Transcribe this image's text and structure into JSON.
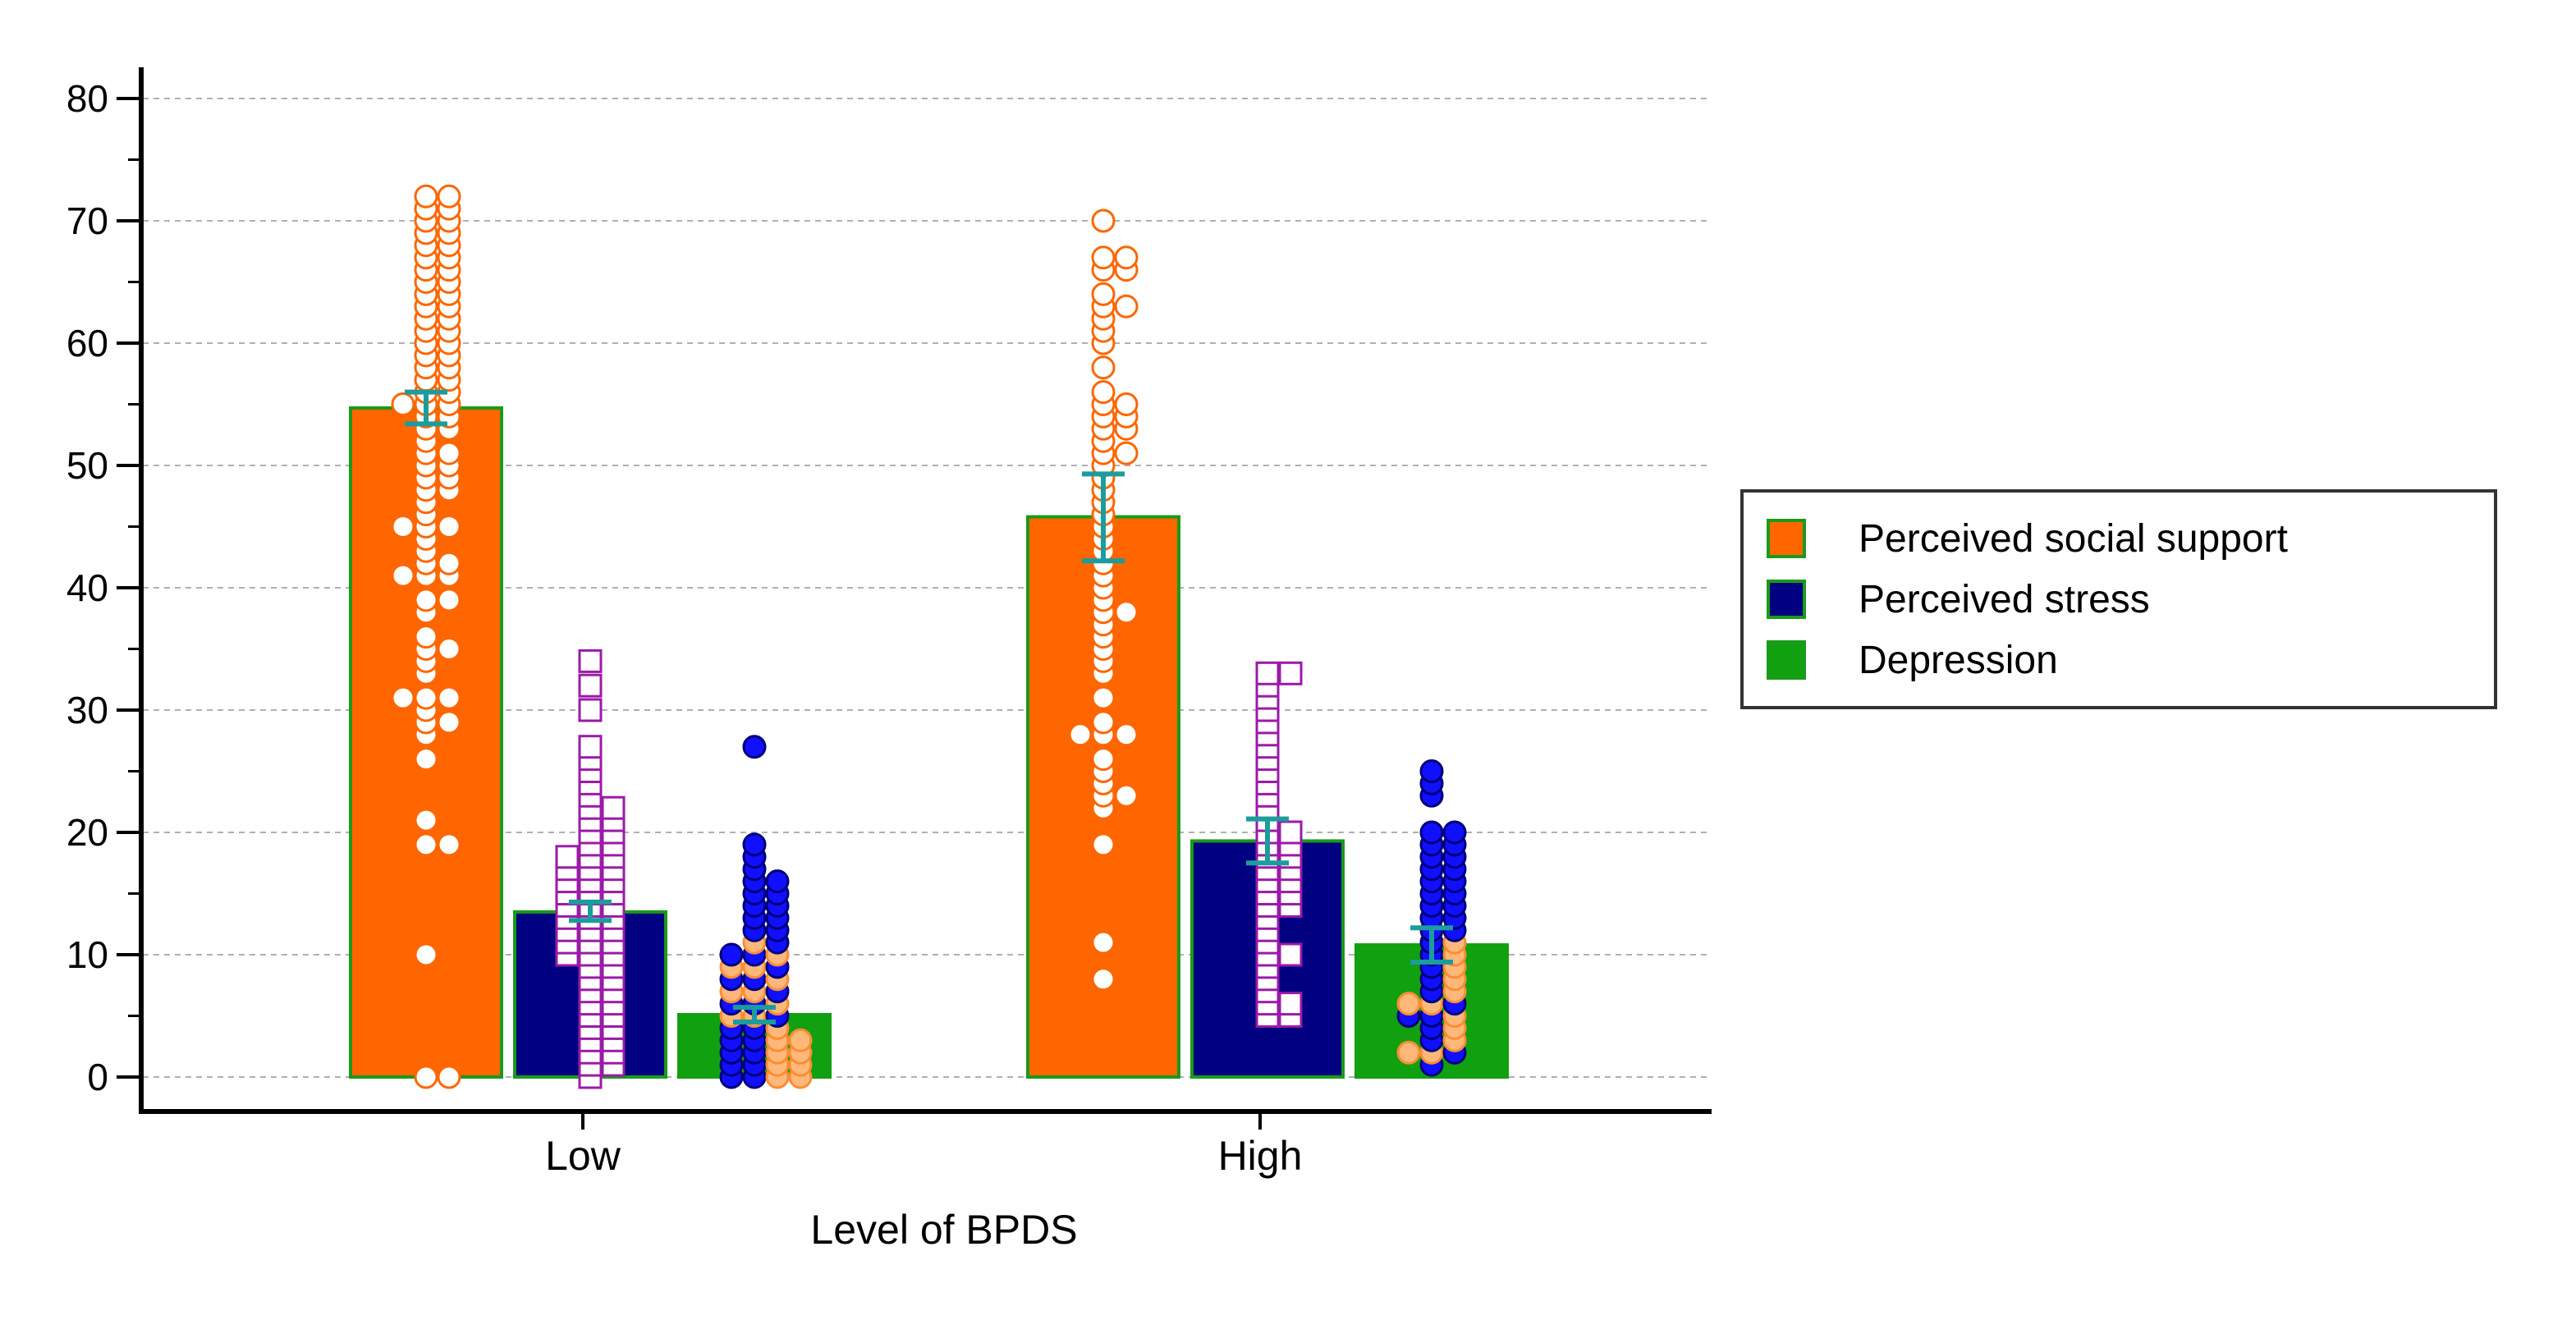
{
  "chart_data": {
    "type": "bar",
    "title": "",
    "xlabel": "Level of BPDS",
    "ylabel": "",
    "ylim": [
      -2,
      83
    ],
    "yticks": [
      0,
      10,
      20,
      30,
      40,
      50,
      60,
      70,
      80
    ],
    "categories": [
      "Low",
      "High"
    ],
    "legend_position": "right",
    "grid": true,
    "series": [
      {
        "name": "Perceived social support",
        "values": [
          54.7,
          45.8
        ],
        "error": [
          [
            53.4,
            56.0
          ],
          [
            42.2,
            49.3
          ]
        ],
        "color": "#ff6600",
        "border": "#1a9a1a",
        "marker": "circle-open",
        "marker_stroke": "#ff6600",
        "points": [
          [
            0,
            0,
            10,
            19,
            19,
            21,
            26,
            28,
            29,
            29,
            30,
            31,
            31,
            31,
            33,
            34,
            35,
            35,
            36,
            38,
            39,
            39,
            41,
            41,
            41,
            42,
            42,
            43,
            44,
            45,
            45,
            45,
            46,
            47,
            48,
            48,
            49,
            49,
            50,
            50,
            51,
            51,
            52,
            53,
            53,
            54,
            54,
            55,
            55,
            55,
            56,
            56,
            57,
            57,
            58,
            58,
            59,
            59,
            60,
            60,
            61,
            61,
            62,
            62,
            63,
            63,
            64,
            64,
            65,
            65,
            66,
            66,
            67,
            67,
            68,
            68,
            69,
            69,
            70,
            70,
            71,
            71,
            72,
            72
          ],
          [
            8,
            11,
            19,
            22,
            23,
            23,
            24,
            25,
            26,
            28,
            28,
            28,
            29,
            31,
            33,
            34,
            35,
            36,
            37,
            38,
            38,
            39,
            40,
            41,
            42,
            43,
            44,
            45,
            46,
            47,
            48,
            49,
            50,
            51,
            51,
            52,
            53,
            53,
            54,
            54,
            55,
            55,
            56,
            58,
            60,
            61,
            62,
            63,
            63,
            64,
            66,
            66,
            67,
            67,
            70
          ]
        ]
      },
      {
        "name": "Perceived stress",
        "values": [
          13.5,
          19.3
        ],
        "error": [
          [
            12.8,
            14.3
          ],
          [
            17.5,
            21.1
          ]
        ],
        "color": "#000080",
        "border": "#1a9a1a",
        "marker": "square-open",
        "marker_stroke": "#9b1aa8",
        "points": [
          [
            0,
            1,
            1,
            2,
            2,
            3,
            3,
            4,
            4,
            5,
            5,
            6,
            6,
            7,
            7,
            8,
            8,
            9,
            9,
            10,
            10,
            10,
            11,
            11,
            11,
            12,
            12,
            12,
            13,
            13,
            13,
            14,
            14,
            14,
            15,
            15,
            15,
            16,
            16,
            16,
            17,
            17,
            17,
            18,
            18,
            18,
            19,
            19,
            20,
            20,
            21,
            21,
            22,
            22,
            23,
            24,
            25,
            26,
            27,
            30,
            32,
            34
          ],
          [
            5,
            5,
            6,
            6,
            7,
            8,
            9,
            10,
            10,
            11,
            12,
            13,
            14,
            14,
            15,
            15,
            16,
            16,
            17,
            17,
            18,
            18,
            19,
            19,
            20,
            20,
            21,
            22,
            23,
            24,
            25,
            26,
            27,
            28,
            29,
            30,
            31,
            32,
            33,
            33
          ]
        ]
      },
      {
        "name": "Depression",
        "values": [
          5.1,
          10.8
        ],
        "error": [
          [
            4.5,
            5.7
          ],
          [
            9.4,
            12.2
          ]
        ],
        "color": "#10a010",
        "border": "#10a010",
        "marker": "circle-filled",
        "marker_stroke": "#ff8c33",
        "points": [
          [
            0,
            0,
            0,
            0,
            1,
            1,
            1,
            1,
            2,
            2,
            2,
            2,
            3,
            3,
            3,
            3,
            4,
            4,
            4,
            5,
            5,
            5,
            6,
            6,
            6,
            7,
            7,
            7,
            8,
            8,
            8,
            9,
            9,
            9,
            10,
            10,
            10,
            11,
            11,
            12,
            12,
            13,
            13,
            14,
            14,
            15,
            15,
            16,
            16,
            17,
            18,
            19,
            27
          ],
          [
            1,
            2,
            2,
            2,
            3,
            3,
            4,
            4,
            5,
            5,
            5,
            6,
            6,
            6,
            7,
            7,
            8,
            8,
            9,
            9,
            10,
            10,
            11,
            11,
            12,
            12,
            13,
            13,
            14,
            14,
            15,
            15,
            16,
            16,
            17,
            17,
            18,
            18,
            19,
            19,
            20,
            20,
            23,
            24,
            25
          ]
        ]
      }
    ]
  }
}
